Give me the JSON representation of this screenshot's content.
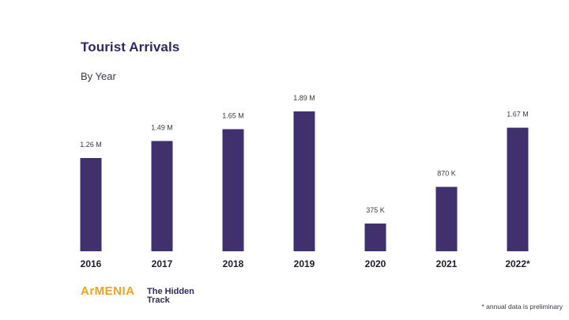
{
  "header": {
    "title": "Tourist Arrivals",
    "subtitle": "By Year"
  },
  "chart_data": {
    "type": "bar",
    "title": "Tourist Arrivals",
    "subtitle": "By Year",
    "categories": [
      "2016",
      "2017",
      "2018",
      "2019",
      "2020",
      "2021",
      "2022*"
    ],
    "values": [
      1.26,
      1.49,
      1.65,
      1.89,
      0.375,
      0.87,
      1.67
    ],
    "unit": "million",
    "labels": [
      "1.26 M",
      "1.49 M",
      "1.65 M",
      "1.89 M",
      "375 K",
      "870 K",
      "1.67 M"
    ],
    "xlabel": "",
    "ylabel": "",
    "ylim": [
      0,
      1.89
    ],
    "grid": false,
    "bar_color": "#41306e"
  },
  "footer": {
    "logo_brand": "ArMENIA",
    "logo_tagline": "The Hidden\nTrack",
    "footnote": "* annual data is preliminary"
  },
  "colors": {
    "bar": "#41306e",
    "title": "#2e2a5e",
    "brand_orange": "#f2a11f"
  }
}
